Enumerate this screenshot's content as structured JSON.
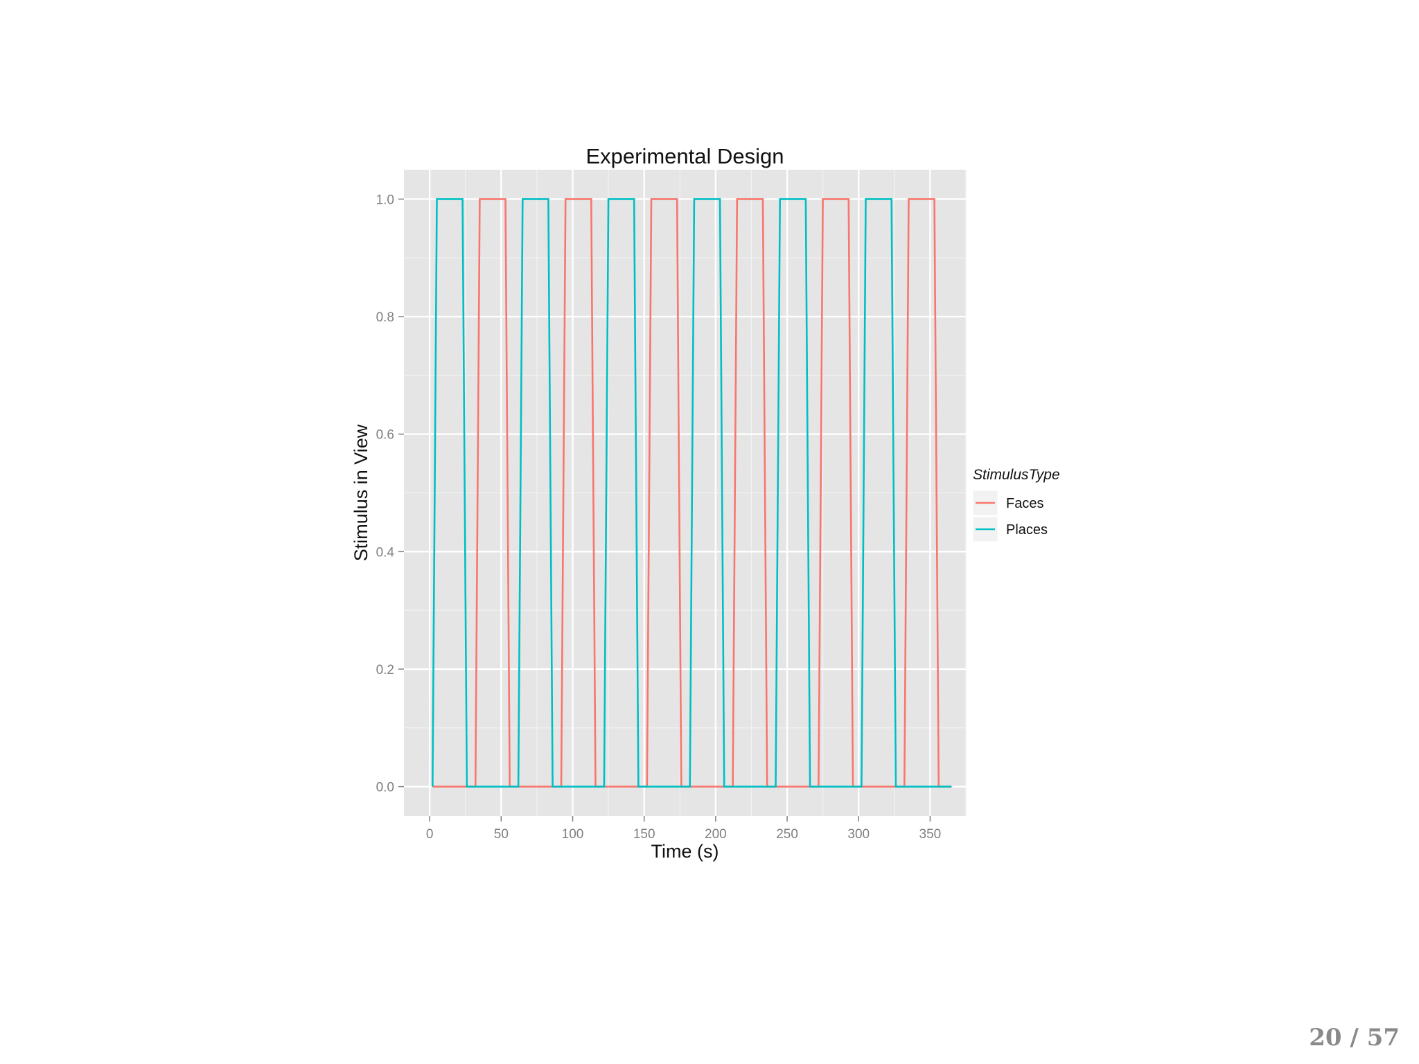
{
  "slide": {
    "page_current": "20",
    "page_sep": "/",
    "page_total": "57",
    "page_label": "20 / 57"
  },
  "chart_data": {
    "type": "line",
    "title": "Experimental Design",
    "xlabel": "Time (s)",
    "ylabel": "Stimulus in View",
    "xlim": [
      -18,
      375
    ],
    "ylim": [
      -0.05,
      1.05
    ],
    "x_ticks": [
      0,
      50,
      100,
      150,
      200,
      250,
      300,
      350
    ],
    "x_tick_labels": [
      "0",
      "50",
      "100",
      "150",
      "200",
      "250",
      "300",
      "350"
    ],
    "y_ticks": [
      0.0,
      0.2,
      0.4,
      0.6,
      0.8,
      1.0
    ],
    "y_tick_labels": [
      "0.0",
      "0.2",
      "0.4",
      "0.6",
      "0.8",
      "1.0"
    ],
    "grid": true,
    "legend": {
      "title": "StimulusType",
      "placement": "right",
      "entries": [
        "Faces",
        "Places"
      ]
    },
    "colors": {
      "Faces": "#F8766D",
      "Places": "#00BFC4",
      "panel_bg": "#E5E5E5",
      "grid": "#FFFFFF"
    },
    "series": [
      {
        "name": "Faces",
        "x": [
          2,
          32,
          35,
          53,
          56,
          62,
          65,
          92,
          95,
          113,
          116,
          122,
          125,
          152,
          155,
          173,
          176,
          182,
          185,
          212,
          215,
          233,
          236,
          242,
          245,
          272,
          275,
          293,
          296,
          302,
          305,
          332,
          335,
          353,
          356,
          365
        ],
        "y": [
          0,
          0,
          1,
          1,
          0,
          0,
          0,
          0,
          1,
          1,
          0,
          0,
          0,
          0,
          1,
          1,
          0,
          0,
          0,
          0,
          1,
          1,
          0,
          0,
          0,
          0,
          1,
          1,
          0,
          0,
          0,
          0,
          1,
          1,
          0,
          0
        ]
      },
      {
        "name": "Places",
        "x": [
          2,
          5,
          23,
          26,
          32,
          35,
          62,
          65,
          83,
          86,
          92,
          95,
          122,
          125,
          143,
          146,
          152,
          155,
          182,
          185,
          203,
          206,
          212,
          215,
          242,
          245,
          263,
          266,
          272,
          275,
          302,
          305,
          323,
          326,
          332,
          335,
          365
        ],
        "y": [
          0,
          1,
          1,
          0,
          0,
          0,
          0,
          1,
          1,
          0,
          0,
          0,
          0,
          1,
          1,
          0,
          0,
          0,
          0,
          1,
          1,
          0,
          0,
          0,
          0,
          1,
          1,
          0,
          0,
          0,
          0,
          1,
          1,
          0,
          0,
          0,
          0
        ]
      }
    ]
  }
}
